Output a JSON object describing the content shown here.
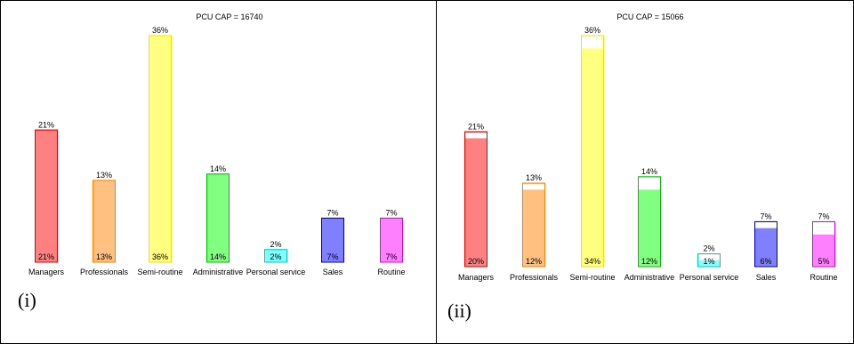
{
  "chart_data": [
    {
      "type": "bar",
      "title": "PCU CAP = 16740",
      "panel_label": "(i)",
      "categories": [
        "Managers",
        "Professionals",
        "Semi-routine",
        "Administrative",
        "Personal service",
        "Sales",
        "Routine"
      ],
      "series": [
        {
          "values": [
            21,
            13,
            36,
            14,
            2,
            7,
            7
          ]
        },
        {
          "values": [
            21,
            13,
            36,
            14,
            2,
            7,
            7
          ]
        }
      ],
      "top_labels": [
        "21%",
        "13%",
        "36%",
        "14%",
        "2%",
        "7%",
        "7%"
      ],
      "bottom_labels": [
        "21%",
        "13%",
        "36%",
        "14%",
        "2%",
        "7%",
        "7%"
      ],
      "ylim": [
        0,
        36
      ],
      "grid": false
    },
    {
      "type": "bar",
      "title": "PCU CAP = 15066",
      "panel_label": "(ii)",
      "categories": [
        "Managers",
        "Professionals",
        "Semi-routine",
        "Administrative",
        "Personal service",
        "Sales",
        "Routine"
      ],
      "series": [
        {
          "values": [
            21,
            13,
            36,
            14,
            2,
            7,
            7
          ]
        },
        {
          "values": [
            20,
            12,
            34,
            12,
            1,
            6,
            5
          ]
        }
      ],
      "top_labels": [
        "21%",
        "13%",
        "36%",
        "14%",
        "2%",
        "7%",
        "7%"
      ],
      "bottom_labels": [
        "20%",
        "12%",
        "34%",
        "12%",
        "1%",
        "6%",
        "5%"
      ],
      "ylim": [
        0,
        36
      ],
      "grid": false
    }
  ],
  "colors": {
    "fill": [
      "#ff8080",
      "#ffc080",
      "#ffff80",
      "#80ff80",
      "#80ffff",
      "#8080ff",
      "#ff80ff"
    ],
    "stroke": [
      "#e00000",
      "#ff8000",
      "#e8e800",
      "#00c000",
      "#00c8c8",
      "#0000c0",
      "#e000e0"
    ]
  }
}
